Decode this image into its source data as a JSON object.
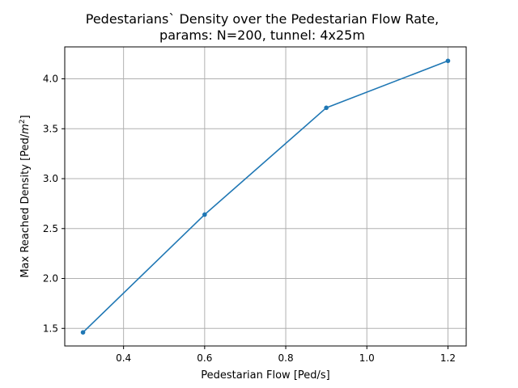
{
  "chart_data": {
    "type": "line",
    "title": "Pedestarians` Density over the Pedestarian Flow Rate,",
    "subtitle": "params: N=200, tunnel: 4x25m",
    "xlabel": "Pedestarian Flow [Ped/s]",
    "ylabel_prefix": "Max Reached Density [Ped/",
    "ylabel_unit_base": "m",
    "ylabel_unit_exp": "2",
    "ylabel_suffix": "]",
    "xlim": [
      0.255,
      1.245
    ],
    "ylim": [
      1.324,
      4.32
    ],
    "x_ticks": [
      0.4,
      0.6,
      0.8,
      1.0,
      1.2
    ],
    "x_tick_labels": [
      "0.4",
      "0.6",
      "0.8",
      "1.0",
      "1.2"
    ],
    "y_ticks": [
      1.5,
      2.0,
      2.5,
      3.0,
      3.5,
      4.0
    ],
    "y_tick_labels": [
      "1.5",
      "2.0",
      "2.5",
      "3.0",
      "3.5",
      "4.0"
    ],
    "grid": true,
    "series": [
      {
        "color": "#1f77b4",
        "marker": "circle",
        "x": [
          0.3,
          0.6,
          0.9,
          1.2
        ],
        "y": [
          1.46,
          2.64,
          3.71,
          4.18
        ]
      }
    ]
  }
}
